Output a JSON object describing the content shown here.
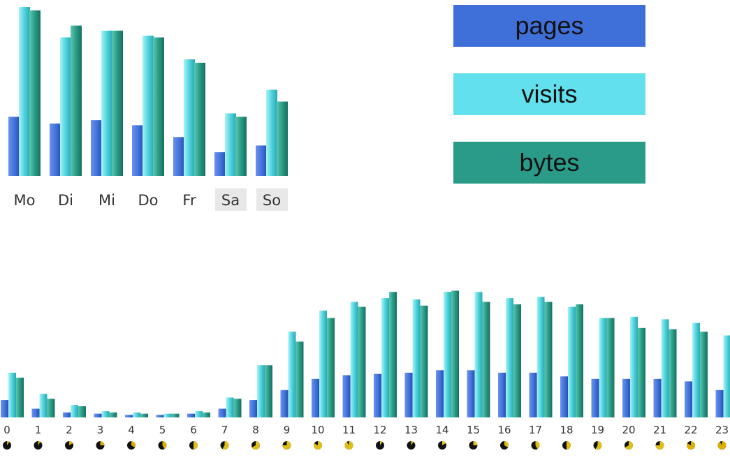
{
  "legend": {
    "items": [
      {
        "label": "pages",
        "color": "#3f6fd8"
      },
      {
        "label": "visits",
        "color": "#62e0ee"
      },
      {
        "label": "bytes",
        "color": "#2a9b88"
      }
    ]
  },
  "chart_data": [
    {
      "type": "bar",
      "categories": [
        "Mo",
        "Di",
        "Mi",
        "Do",
        "Fr",
        "Sa",
        "So"
      ],
      "weekend": [
        false,
        false,
        false,
        false,
        false,
        true,
        true
      ],
      "series": [
        {
          "name": "pages",
          "values": [
            35,
            31,
            33,
            30,
            23,
            14,
            18
          ]
        },
        {
          "name": "visits",
          "values": [
            100,
            82,
            86,
            83,
            69,
            37,
            51
          ]
        },
        {
          "name": "bytes",
          "values": [
            98,
            89,
            86,
            82,
            67,
            35,
            44
          ]
        }
      ],
      "ylim": [
        0,
        100
      ],
      "grid": false
    },
    {
      "type": "bar",
      "categories": [
        "0",
        "1",
        "2",
        "3",
        "4",
        "5",
        "6",
        "7",
        "8",
        "9",
        "10",
        "11",
        "12",
        "13",
        "14",
        "15",
        "16",
        "17",
        "18",
        "19",
        "20",
        "21",
        "22",
        "23"
      ],
      "series": [
        {
          "name": "pages",
          "values": [
            14,
            7,
            4,
            3,
            2,
            2,
            3,
            7,
            14,
            22,
            31,
            34,
            35,
            36,
            38,
            38,
            36,
            36,
            33,
            31,
            31,
            31,
            29,
            22
          ]
        },
        {
          "name": "visits",
          "values": [
            36,
            19,
            10,
            5,
            4,
            3,
            5,
            16,
            42,
            69,
            86,
            93,
            96,
            95,
            101,
            101,
            96,
            97,
            89,
            80,
            81,
            79,
            76,
            66
          ]
        },
        {
          "name": "bytes",
          "values": [
            32,
            15,
            9,
            4,
            3,
            3,
            4,
            15,
            42,
            61,
            80,
            89,
            101,
            90,
            102,
            93,
            91,
            93,
            91,
            80,
            72,
            71,
            69,
            62
          ]
        }
      ],
      "clock_icons": [
        "night",
        "night",
        "night",
        "night",
        "night",
        "night",
        "dawn",
        "dawn",
        "day",
        "day",
        "day",
        "day",
        "day",
        "day",
        "day",
        "day",
        "day",
        "day",
        "day",
        "day",
        "dusk",
        "dusk",
        "night",
        "night"
      ],
      "ylim": [
        0,
        100
      ],
      "grid": false
    }
  ]
}
